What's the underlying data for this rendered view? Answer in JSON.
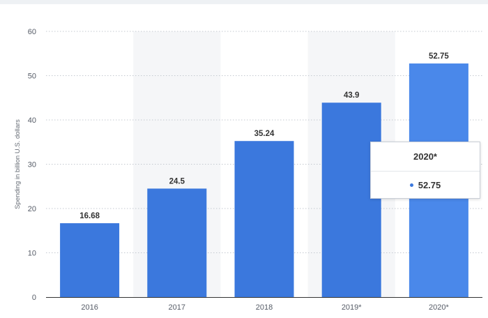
{
  "chart_data": {
    "type": "bar",
    "categories": [
      "2016",
      "2017",
      "2018",
      "2019*",
      "2020*"
    ],
    "values": [
      16.68,
      24.5,
      35.24,
      43.9,
      52.75
    ],
    "value_labels": [
      "16.68",
      "24.5",
      "35.24",
      "43.9",
      "52.75"
    ],
    "ylabel": "Spending in billion U.S. dollars",
    "ylim": [
      0,
      60
    ],
    "yticks": [
      0,
      10,
      20,
      30,
      40,
      50,
      60
    ],
    "grid": true,
    "bar_color": "#3b78dd",
    "highlight_color": "#4a88ea",
    "band_color": "#f5f6f8"
  },
  "tooltip": {
    "title": "2020*",
    "value": "52.75",
    "dot_color": "#3b78dd"
  }
}
